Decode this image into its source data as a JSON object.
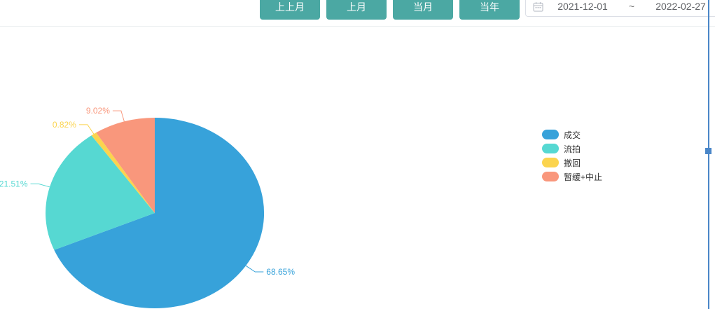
{
  "toolbar": {
    "button_color": "#4ba8a3",
    "buttons": [
      "上上月",
      "上月",
      "当月",
      "当年"
    ],
    "date_range": {
      "start": "2021-12-01",
      "separator": "~",
      "end": "2022-02-27"
    }
  },
  "chart_data": {
    "type": "pie",
    "title": "",
    "labels": [
      "成交",
      "流拍",
      "撤回",
      "暂缓+中止"
    ],
    "values": [
      68.65,
      21.51,
      0.82,
      9.02
    ],
    "percent_labels": [
      "68.65%",
      "21.51%",
      "0.82%",
      "9.02%"
    ],
    "unit": "%",
    "colors": [
      "#37a2da",
      "#56d8d2",
      "#fbd44e",
      "#f9977c"
    ],
    "legend_position": "right",
    "start_angle_deg": 90,
    "clockwise": true
  },
  "overlay": {
    "guide_color": "#4a86c8"
  }
}
